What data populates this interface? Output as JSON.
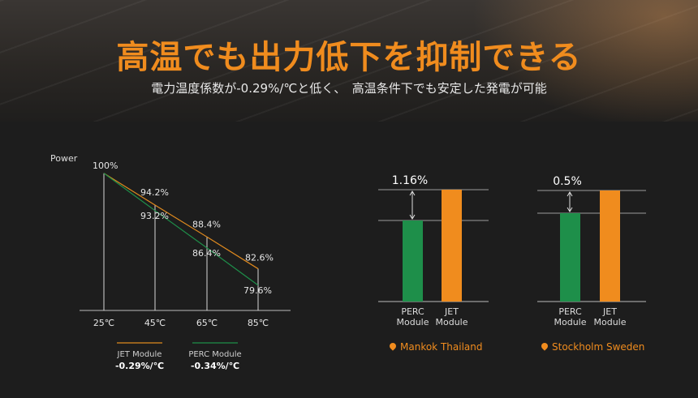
{
  "header": {
    "title": "高温でも出力低下を抑制できる",
    "subtitle": "電力温度係数が-0.29%/℃と低く、　高温条件下でも安定した発電が可能"
  },
  "chart_data": [
    {
      "type": "line",
      "ylabel": "Power",
      "x": [
        "25℃",
        "45℃",
        "65℃",
        "85℃"
      ],
      "series": [
        {
          "name": "JET Module",
          "coef": "-0.29%/℃",
          "color": "#e08a1e",
          "values": [
            100,
            94.2,
            88.4,
            82.6
          ],
          "labels": [
            "100%",
            "94.2%",
            "88.4%",
            "82.6%"
          ]
        },
        {
          "name": "PERC Module",
          "coef": "-0.34%/℃",
          "color": "#1e8f4a",
          "values": [
            100,
            93.2,
            86.4,
            79.6
          ],
          "labels": [
            "",
            "93.2%",
            "86.4%",
            "79.6%"
          ]
        }
      ],
      "ylim": [
        75,
        101
      ]
    },
    {
      "type": "bar",
      "location": "Mankok Thailand",
      "categories": [
        "PERC\nModule",
        "JET\nModule"
      ],
      "values": [
        100,
        101.16
      ],
      "colors": [
        "#1e8f4a",
        "#f08c1e"
      ],
      "difference_label": "1.16%"
    },
    {
      "type": "bar",
      "location": "Stockholm Sweden",
      "categories": [
        "PERC\nModule",
        "JET\nModule"
      ],
      "values": [
        100,
        100.5
      ],
      "colors": [
        "#1e8f4a",
        "#f08c1e"
      ],
      "difference_label": "0.5%"
    }
  ]
}
